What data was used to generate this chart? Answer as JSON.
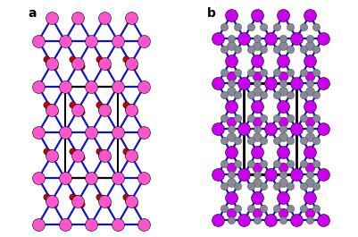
{
  "bg_color": "#ffffff",
  "panel_a_label": "a",
  "panel_b_label": "b",
  "pink_color": "#ff55cc",
  "magenta_color": "#cc00ee",
  "yellow_color": "#ffff00",
  "red_color": "#cc0000",
  "blue_bond_color": "#1111cc",
  "gray_color": "#888899",
  "black_outline": "#000000",
  "figsize": [
    4.01,
    2.65
  ],
  "dpi": 100
}
